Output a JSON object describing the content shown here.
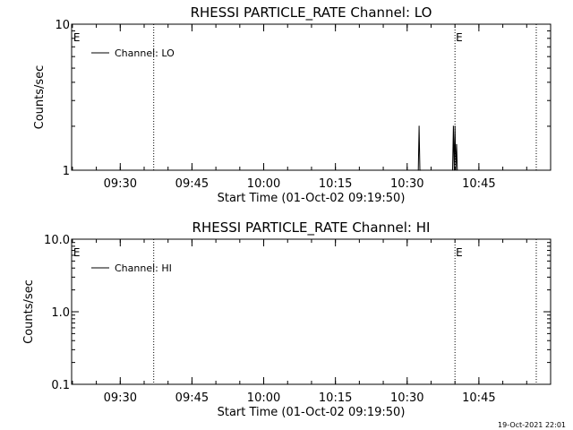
{
  "footer": {
    "timestamp": "19-Oct-2021 22:01"
  },
  "chart_data": [
    {
      "type": "line",
      "title": "RHESSI PARTICLE_RATE Channel: LO",
      "xlabel": "Start Time (01-Oct-02 09:19:50)",
      "ylabel": "Counts/sec",
      "yscale": "log",
      "ylim": [
        1,
        10
      ],
      "yticks": [
        "1",
        "10"
      ],
      "xlim": [
        "09:19:50",
        "11:00:00"
      ],
      "xticks": [
        "09:30",
        "09:45",
        "10:00",
        "10:15",
        "10:30",
        "10:45"
      ],
      "legend": {
        "placement": "top-left",
        "entries": [
          "Channel: LO"
        ]
      },
      "markers": [
        {
          "time": "09:20",
          "label": "E",
          "line": false
        },
        {
          "time": "09:37",
          "label": "",
          "line": true
        },
        {
          "time": "10:40",
          "label": "E",
          "line": true
        },
        {
          "time": "10:57",
          "label": "",
          "line": true
        }
      ],
      "series": [
        {
          "name": "Channel: LO",
          "x": [
            "10:32:20",
            "10:32:30",
            "10:32:40",
            "10:32:50",
            "10:39:30",
            "10:39:40",
            "10:39:50",
            "10:40:00",
            "10:40:10",
            "10:40:20",
            "10:40:30"
          ],
          "y": [
            1,
            2,
            1,
            1,
            1,
            2,
            1,
            2,
            1,
            1.5,
            1
          ]
        }
      ]
    },
    {
      "type": "line",
      "title": "RHESSI PARTICLE_RATE Channel: HI",
      "xlabel": "Start Time (01-Oct-02 09:19:50)",
      "ylabel": "Counts/sec",
      "yscale": "log",
      "ylim": [
        0.1,
        10
      ],
      "yticks": [
        "0.1",
        "1.0",
        "10.0"
      ],
      "xlim": [
        "09:19:50",
        "11:00:00"
      ],
      "xticks": [
        "09:30",
        "09:45",
        "10:00",
        "10:15",
        "10:30",
        "10:45"
      ],
      "legend": {
        "placement": "top-left",
        "entries": [
          "Channel: HI"
        ]
      },
      "markers": [
        {
          "time": "09:20",
          "label": "E",
          "line": false
        },
        {
          "time": "09:37",
          "label": "",
          "line": true
        },
        {
          "time": "10:40",
          "label": "E",
          "line": true
        },
        {
          "time": "10:57",
          "label": "",
          "line": true
        }
      ],
      "series": [
        {
          "name": "Channel: HI",
          "x": [],
          "y": []
        }
      ]
    }
  ]
}
